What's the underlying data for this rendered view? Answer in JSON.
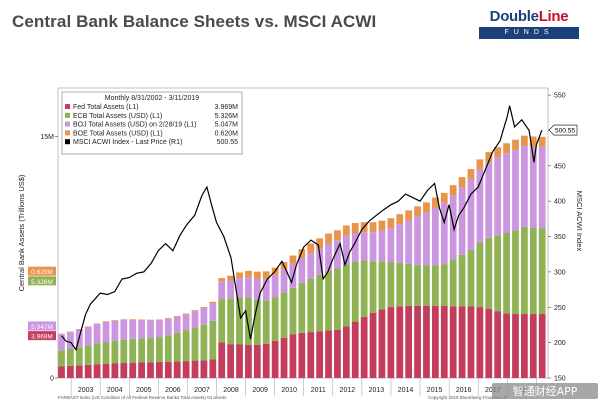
{
  "header": {
    "title": "Central Bank Balance Sheets vs. MSCI ACWI"
  },
  "logo": {
    "brand_part1": "Double",
    "brand_part2": "Line",
    "sub": "FUNDS"
  },
  "chart_data": {
    "type": "area",
    "title": "Monthly 8/31/2002 - 3/11/2019",
    "ylabel_left": "Central Bank Assets (Trillions US$)",
    "ylabel_right": "MSCI ACWI Index",
    "xlabel": "",
    "x_categories": [
      "2003",
      "2004",
      "2005",
      "2006",
      "2007",
      "2008",
      "2009",
      "2010",
      "2011",
      "2012",
      "2013",
      "2014",
      "2015",
      "2016",
      "2017",
      "2018"
    ],
    "left_axis": {
      "range": [
        0,
        18
      ],
      "ticks": [
        {
          "value": 0,
          "label": "0"
        },
        {
          "value": 15,
          "label": "15M"
        }
      ]
    },
    "right_axis": {
      "range": [
        150,
        560
      ],
      "ticks": [
        550,
        500,
        450,
        400,
        350,
        300,
        250,
        200,
        150
      ]
    },
    "series_stacked": [
      {
        "name": "Fed Total Assets (L1)",
        "last": "3.969M",
        "color": "#c43d5c",
        "values": [
          0.72,
          0.75,
          0.79,
          0.82,
          0.86,
          0.88,
          0.9,
          0.93,
          0.95,
          0.97,
          0.98,
          0.99,
          1.0,
          1.02,
          1.05,
          1.08,
          1.1,
          1.15,
          2.2,
          2.1,
          2.1,
          2.05,
          2.05,
          2.12,
          2.3,
          2.5,
          2.7,
          2.8,
          2.85,
          2.9,
          2.95,
          3.0,
          3.2,
          3.5,
          3.8,
          4.05,
          4.25,
          4.4,
          4.45,
          4.48,
          4.48,
          4.48,
          4.48,
          4.47,
          4.45,
          4.45,
          4.45,
          4.4,
          4.3,
          4.15,
          4.0,
          3.97
        ]
      },
      {
        "name": "ECB Total Assets (USD) (L1)",
        "last": "5.326M",
        "color": "#8fb255",
        "values": [
          1.0,
          1.05,
          1.12,
          1.2,
          1.3,
          1.35,
          1.4,
          1.45,
          1.48,
          1.5,
          1.5,
          1.55,
          1.65,
          1.78,
          1.9,
          2.05,
          2.2,
          2.4,
          2.7,
          2.8,
          2.9,
          2.95,
          2.8,
          2.7,
          2.7,
          2.8,
          2.9,
          3.1,
          3.3,
          3.5,
          3.7,
          3.8,
          3.85,
          3.7,
          3.5,
          3.2,
          3.0,
          2.8,
          2.7,
          2.6,
          2.55,
          2.5,
          2.5,
          2.6,
          2.9,
          3.2,
          3.5,
          4.0,
          4.4,
          4.7,
          5.0,
          5.2,
          5.4,
          5.35,
          5.33
        ]
      },
      {
        "name": "BOJ Total Assets (USD) on 2/28/19 (L1)",
        "last": "5.047M",
        "color": "#cc95e0",
        "values": [
          1.0,
          1.05,
          1.1,
          1.15,
          1.2,
          1.25,
          1.25,
          1.22,
          1.18,
          1.12,
          1.1,
          1.05,
          1.02,
          1.0,
          1.0,
          1.02,
          1.05,
          1.08,
          1.1,
          1.15,
          1.2,
          1.25,
          1.3,
          1.35,
          1.4,
          1.45,
          1.5,
          1.55,
          1.6,
          1.65,
          1.7,
          1.75,
          1.8,
          1.8,
          1.75,
          1.8,
          1.9,
          2.1,
          2.4,
          2.7,
          3.0,
          3.3,
          3.6,
          3.8,
          4.0,
          4.2,
          4.4,
          4.55,
          4.7,
          4.85,
          4.95,
          5.0,
          5.05,
          5.05
        ]
      },
      {
        "name": "BOE Total Assets (USD) (L1)",
        "last": "0.620M",
        "color": "#e8944a",
        "values": [
          0.03,
          0.03,
          0.03,
          0.03,
          0.03,
          0.04,
          0.04,
          0.04,
          0.04,
          0.04,
          0.04,
          0.04,
          0.05,
          0.05,
          0.05,
          0.06,
          0.06,
          0.1,
          0.2,
          0.3,
          0.35,
          0.4,
          0.45,
          0.45,
          0.45,
          0.45,
          0.5,
          0.55,
          0.6,
          0.62,
          0.62,
          0.62,
          0.62,
          0.62,
          0.62,
          0.62,
          0.62,
          0.62,
          0.62,
          0.62,
          0.62,
          0.62,
          0.62,
          0.62,
          0.62,
          0.62,
          0.62,
          0.62,
          0.62,
          0.62,
          0.62,
          0.62,
          0.62,
          0.62
        ]
      }
    ],
    "line_series": {
      "name": "MSCI ACWI Index - Last Price (R1)",
      "last": "500.55",
      "color": "#000000",
      "x_years": [
        2002.67,
        2002.83,
        2003.0,
        2003.17,
        2003.33,
        2003.5,
        2003.67,
        2003.83,
        2004.0,
        2004.25,
        2004.5,
        2004.75,
        2005.0,
        2005.25,
        2005.5,
        2005.75,
        2006.0,
        2006.25,
        2006.5,
        2006.75,
        2007.0,
        2007.25,
        2007.5,
        2007.67,
        2007.83,
        2008.0,
        2008.25,
        2008.5,
        2008.75,
        2008.83,
        2009.0,
        2009.17,
        2009.33,
        2009.5,
        2009.75,
        2010.0,
        2010.25,
        2010.42,
        2010.58,
        2010.75,
        2011.0,
        2011.25,
        2011.5,
        2011.67,
        2011.83,
        2012.0,
        2012.25,
        2012.42,
        2012.58,
        2012.75,
        2013.0,
        2013.25,
        2013.5,
        2013.75,
        2014.0,
        2014.25,
        2014.5,
        2014.75,
        2015.0,
        2015.25,
        2015.5,
        2015.67,
        2015.83,
        2016.0,
        2016.17,
        2016.33,
        2016.5,
        2016.75,
        2017.0,
        2017.25,
        2017.5,
        2017.75,
        2018.0,
        2018.08,
        2018.25,
        2018.5,
        2018.75,
        2018.92,
        2019.0,
        2019.19
      ],
      "values": [
        210,
        202,
        200,
        190,
        215,
        240,
        255,
        262,
        270,
        268,
        272,
        290,
        292,
        298,
        300,
        312,
        330,
        340,
        330,
        352,
        368,
        380,
        408,
        420,
        395,
        370,
        350,
        320,
        255,
        235,
        245,
        205,
        240,
        270,
        290,
        300,
        315,
        300,
        285,
        310,
        335,
        345,
        338,
        290,
        300,
        318,
        340,
        310,
        328,
        340,
        360,
        372,
        380,
        388,
        395,
        400,
        410,
        405,
        400,
        415,
        425,
        390,
        370,
        395,
        360,
        380,
        390,
        410,
        420,
        445,
        470,
        485,
        520,
        535,
        505,
        515,
        500,
        455,
        480,
        500.55
      ]
    }
  },
  "legend_title": "Monthly 8/31/2002 - 3/11/2019",
  "axis_tags": [
    {
      "label": "0.620M",
      "value": 0.62,
      "color": "#e8944a"
    },
    {
      "label": "5.326M",
      "value": 5.326,
      "color": "#8fb255"
    },
    {
      "label": "5.047M",
      "value": 5.047,
      "color": "#cc95e0"
    },
    {
      "label": "3.969M",
      "value": 3.969,
      "color": "#c43d5c"
    }
  ],
  "right_tag": {
    "label": "500.55"
  },
  "footer": {
    "left": "FARBAST Index (US Condition of All Federal Reserve Banks Total Assets) 04 assets",
    "right": "Copyright 2019 Bloomberg Finance L.P."
  },
  "watermark": "智通财经APP"
}
